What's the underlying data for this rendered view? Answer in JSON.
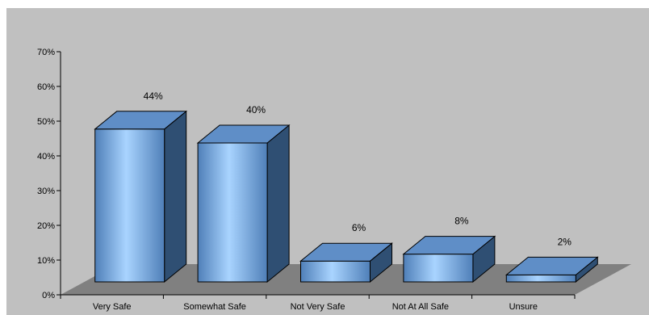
{
  "chart_data": {
    "type": "bar",
    "categories": [
      "Very Safe",
      "Somewhat Safe",
      "Not Very Safe",
      "Not At All Safe",
      "Unsure"
    ],
    "values": [
      44,
      40,
      6,
      8,
      2
    ],
    "data_labels": [
      "44%",
      "40%",
      "6%",
      "8%",
      "2%"
    ],
    "y_ticks": [
      "0%",
      "10%",
      "20%",
      "30%",
      "40%",
      "50%",
      "60%",
      "70%"
    ],
    "ylim": [
      0,
      70
    ],
    "title": "",
    "xlabel": "",
    "ylabel": "",
    "grid": false,
    "legend": "none",
    "style": "3d-column",
    "colors": {
      "plot_background": "#c0c0c0",
      "floor": "#808080",
      "bar_front_light": "#a9d4ff",
      "bar_front_dark": "#4f7fb8",
      "bar_side": "#2f4f73",
      "bar_top": "#5f8ec7",
      "outline": "#000000"
    }
  }
}
